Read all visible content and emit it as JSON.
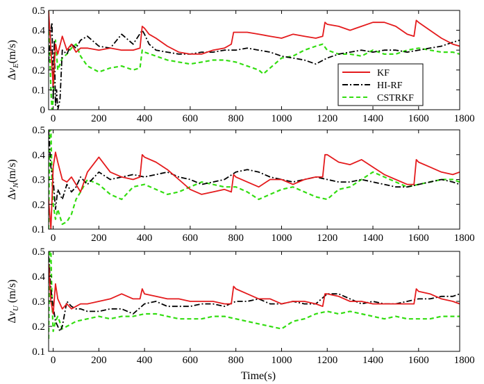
{
  "figure": {
    "xlabel": "Time(s)"
  },
  "legend": {
    "placement": "inside-right of top panel",
    "entries": [
      "KF",
      "HI-RF",
      "CSTRKF"
    ]
  },
  "colors": {
    "KF": "#e41a1c",
    "HI-RF": "#000000",
    "CSTRKF": "#33dd11"
  },
  "chart_data": [
    {
      "type": "line",
      "panel": "top",
      "ylabel_delta": "Δ",
      "ylabel_main": "v",
      "ylabel_sub": "E",
      "ylabel_unit": "(m/s)",
      "xlim": [
        -20,
        1780
      ],
      "ylim": [
        0,
        0.5
      ],
      "xticks": [
        0,
        200,
        400,
        600,
        800,
        1000,
        1200,
        1400,
        1600,
        1800
      ],
      "yticks": [
        0,
        0.1,
        0.2,
        0.3,
        0.4,
        0.5
      ],
      "grid": false,
      "series": [
        {
          "name": "KF",
          "style": "solid",
          "x": [
            -20,
            -10,
            0,
            10,
            20,
            40,
            60,
            80,
            100,
            120,
            150,
            200,
            250,
            300,
            350,
            380,
            390,
            400,
            420,
            450,
            500,
            550,
            600,
            650,
            700,
            750,
            780,
            790,
            800,
            850,
            900,
            950,
            1000,
            1050,
            1100,
            1150,
            1180,
            1190,
            1200,
            1250,
            1300,
            1350,
            1400,
            1450,
            1500,
            1550,
            1580,
            1590,
            1600,
            1650,
            1700,
            1750,
            1780
          ],
          "y": [
            0.5,
            0.3,
            0.12,
            0.33,
            0.28,
            0.37,
            0.3,
            0.33,
            0.29,
            0.31,
            0.31,
            0.3,
            0.31,
            0.3,
            0.3,
            0.31,
            0.42,
            0.41,
            0.38,
            0.36,
            0.32,
            0.29,
            0.28,
            0.28,
            0.3,
            0.31,
            0.33,
            0.39,
            0.39,
            0.39,
            0.38,
            0.37,
            0.36,
            0.38,
            0.37,
            0.36,
            0.37,
            0.44,
            0.43,
            0.42,
            0.4,
            0.42,
            0.44,
            0.44,
            0.42,
            0.38,
            0.37,
            0.45,
            0.44,
            0.4,
            0.36,
            0.33,
            0.32
          ]
        },
        {
          "name": "HI-RF",
          "style": "dashdot",
          "x": [
            -20,
            -10,
            -5,
            0,
            5,
            10,
            15,
            20,
            30,
            40,
            60,
            80,
            100,
            120,
            150,
            200,
            250,
            300,
            350,
            390,
            400,
            420,
            450,
            500,
            550,
            600,
            650,
            700,
            750,
            800,
            850,
            900,
            950,
            1000,
            1050,
            1100,
            1150,
            1200,
            1250,
            1300,
            1350,
            1400,
            1450,
            1500,
            1550,
            1600,
            1650,
            1700,
            1750,
            1780
          ],
          "y": [
            0.24,
            0.4,
            0.44,
            0.05,
            0.35,
            0.02,
            0.1,
            0.0,
            0.05,
            0.3,
            0.28,
            0.33,
            0.31,
            0.35,
            0.37,
            0.32,
            0.31,
            0.38,
            0.33,
            0.4,
            0.38,
            0.33,
            0.3,
            0.29,
            0.28,
            0.28,
            0.29,
            0.29,
            0.3,
            0.3,
            0.31,
            0.3,
            0.29,
            0.27,
            0.26,
            0.25,
            0.23,
            0.26,
            0.28,
            0.29,
            0.3,
            0.29,
            0.3,
            0.3,
            0.29,
            0.3,
            0.31,
            0.32,
            0.34,
            0.35
          ]
        },
        {
          "name": "CSTRKF",
          "style": "dashed",
          "x": [
            -20,
            -15,
            -10,
            -5,
            0,
            5,
            10,
            20,
            40,
            60,
            80,
            100,
            120,
            150,
            200,
            250,
            300,
            350,
            380,
            390,
            400,
            450,
            500,
            550,
            600,
            650,
            700,
            750,
            800,
            850,
            900,
            920,
            950,
            1000,
            1050,
            1100,
            1150,
            1180,
            1200,
            1250,
            1300,
            1350,
            1400,
            1450,
            1500,
            1550,
            1600,
            1650,
            1700,
            1750,
            1780
          ],
          "y": [
            0.5,
            0.3,
            0.1,
            0.0,
            0.05,
            0.25,
            0.35,
            0.2,
            0.26,
            0.28,
            0.31,
            0.33,
            0.27,
            0.22,
            0.19,
            0.21,
            0.22,
            0.2,
            0.21,
            0.3,
            0.29,
            0.27,
            0.25,
            0.24,
            0.23,
            0.24,
            0.25,
            0.25,
            0.24,
            0.22,
            0.2,
            0.18,
            0.21,
            0.26,
            0.27,
            0.3,
            0.32,
            0.33,
            0.3,
            0.28,
            0.28,
            0.27,
            0.3,
            0.28,
            0.28,
            0.3,
            0.31,
            0.3,
            0.29,
            0.29,
            0.28
          ]
        }
      ]
    },
    {
      "type": "line",
      "panel": "middle",
      "ylabel_delta": "Δ",
      "ylabel_main": "v",
      "ylabel_sub": "N",
      "ylabel_unit": "(m/s)",
      "xlim": [
        -20,
        1780
      ],
      "ylim": [
        0.1,
        0.5
      ],
      "xticks": [
        0,
        200,
        400,
        600,
        800,
        1000,
        1200,
        1400,
        1600,
        1800
      ],
      "yticks": [
        0.1,
        0.2,
        0.3,
        0.4,
        0.5
      ],
      "grid": false,
      "series": [
        {
          "name": "KF",
          "style": "solid",
          "x": [
            -20,
            -10,
            0,
            10,
            20,
            40,
            60,
            80,
            100,
            120,
            150,
            200,
            250,
            300,
            350,
            380,
            390,
            400,
            450,
            500,
            550,
            600,
            650,
            700,
            750,
            780,
            790,
            800,
            850,
            900,
            950,
            1000,
            1050,
            1100,
            1150,
            1180,
            1190,
            1200,
            1250,
            1300,
            1350,
            1400,
            1450,
            1500,
            1550,
            1580,
            1590,
            1600,
            1650,
            1700,
            1750,
            1780
          ],
          "y": [
            0.22,
            0.1,
            0.35,
            0.41,
            0.37,
            0.3,
            0.29,
            0.31,
            0.28,
            0.25,
            0.33,
            0.39,
            0.33,
            0.31,
            0.3,
            0.31,
            0.4,
            0.39,
            0.37,
            0.34,
            0.3,
            0.26,
            0.24,
            0.25,
            0.26,
            0.25,
            0.32,
            0.31,
            0.29,
            0.27,
            0.3,
            0.3,
            0.28,
            0.3,
            0.31,
            0.31,
            0.4,
            0.4,
            0.37,
            0.36,
            0.38,
            0.35,
            0.32,
            0.3,
            0.28,
            0.28,
            0.38,
            0.37,
            0.35,
            0.33,
            0.32,
            0.33
          ]
        },
        {
          "name": "HI-RF",
          "style": "dashdot",
          "x": [
            -20,
            -10,
            0,
            10,
            20,
            40,
            60,
            80,
            100,
            120,
            150,
            200,
            250,
            300,
            350,
            400,
            450,
            500,
            550,
            600,
            650,
            700,
            750,
            800,
            850,
            900,
            950,
            1000,
            1050,
            1100,
            1150,
            1200,
            1250,
            1300,
            1350,
            1400,
            1450,
            1500,
            1550,
            1600,
            1650,
            1700,
            1750,
            1780
          ],
          "y": [
            0.5,
            0.35,
            0.3,
            0.18,
            0.26,
            0.22,
            0.28,
            0.25,
            0.27,
            0.31,
            0.28,
            0.33,
            0.3,
            0.31,
            0.32,
            0.31,
            0.32,
            0.33,
            0.31,
            0.3,
            0.28,
            0.29,
            0.3,
            0.33,
            0.34,
            0.33,
            0.31,
            0.3,
            0.29,
            0.3,
            0.31,
            0.3,
            0.29,
            0.29,
            0.3,
            0.29,
            0.28,
            0.27,
            0.27,
            0.28,
            0.29,
            0.3,
            0.29,
            0.28
          ]
        },
        {
          "name": "CSTRKF",
          "style": "dashed",
          "x": [
            -20,
            -15,
            -10,
            -5,
            0,
            10,
            20,
            40,
            60,
            80,
            100,
            120,
            150,
            200,
            250,
            300,
            350,
            400,
            450,
            500,
            550,
            600,
            650,
            700,
            750,
            800,
            850,
            900,
            950,
            1000,
            1050,
            1100,
            1150,
            1200,
            1250,
            1300,
            1350,
            1400,
            1450,
            1500,
            1550,
            1600,
            1650,
            1700,
            1750,
            1780
          ],
          "y": [
            0.1,
            0.5,
            0.5,
            0.3,
            0.2,
            0.14,
            0.18,
            0.12,
            0.13,
            0.16,
            0.22,
            0.25,
            0.3,
            0.28,
            0.24,
            0.22,
            0.27,
            0.28,
            0.26,
            0.24,
            0.25,
            0.27,
            0.29,
            0.28,
            0.27,
            0.27,
            0.25,
            0.22,
            0.24,
            0.26,
            0.27,
            0.25,
            0.23,
            0.22,
            0.26,
            0.27,
            0.3,
            0.33,
            0.31,
            0.29,
            0.27,
            0.28,
            0.29,
            0.3,
            0.3,
            0.29
          ]
        }
      ]
    },
    {
      "type": "line",
      "panel": "bottom",
      "ylabel_delta": "Δ",
      "ylabel_main": "v",
      "ylabel_sub": "U",
      "ylabel_unit": " (m/s)",
      "xlim": [
        -20,
        1780
      ],
      "ylim": [
        0.1,
        0.5
      ],
      "xticks": [
        0,
        200,
        400,
        600,
        800,
        1000,
        1200,
        1400,
        1600,
        1800
      ],
      "yticks": [
        0.1,
        0.2,
        0.3,
        0.4,
        0.5
      ],
      "grid": false,
      "series": [
        {
          "name": "KF",
          "style": "solid",
          "x": [
            -20,
            -10,
            0,
            10,
            20,
            40,
            60,
            80,
            100,
            120,
            150,
            200,
            250,
            300,
            350,
            380,
            390,
            400,
            450,
            500,
            550,
            600,
            650,
            700,
            750,
            780,
            790,
            800,
            850,
            900,
            950,
            1000,
            1050,
            1100,
            1150,
            1180,
            1190,
            1200,
            1250,
            1300,
            1350,
            1400,
            1450,
            1500,
            1550,
            1580,
            1590,
            1600,
            1650,
            1700,
            1750,
            1780
          ],
          "y": [
            0.45,
            0.3,
            0.25,
            0.37,
            0.31,
            0.27,
            0.29,
            0.27,
            0.28,
            0.29,
            0.29,
            0.3,
            0.31,
            0.33,
            0.31,
            0.31,
            0.35,
            0.33,
            0.32,
            0.31,
            0.31,
            0.3,
            0.3,
            0.3,
            0.29,
            0.29,
            0.36,
            0.35,
            0.33,
            0.31,
            0.31,
            0.29,
            0.3,
            0.3,
            0.29,
            0.28,
            0.33,
            0.33,
            0.32,
            0.3,
            0.3,
            0.29,
            0.29,
            0.29,
            0.29,
            0.29,
            0.35,
            0.34,
            0.33,
            0.31,
            0.3,
            0.29
          ]
        },
        {
          "name": "HI-RF",
          "style": "dashdot",
          "x": [
            -20,
            -10,
            0,
            10,
            20,
            30,
            40,
            60,
            80,
            100,
            120,
            150,
            200,
            250,
            300,
            350,
            400,
            450,
            500,
            550,
            600,
            650,
            700,
            750,
            800,
            850,
            900,
            950,
            1000,
            1050,
            1100,
            1150,
            1200,
            1250,
            1300,
            1350,
            1400,
            1450,
            1500,
            1550,
            1600,
            1650,
            1700,
            1750,
            1780
          ],
          "y": [
            0.48,
            0.35,
            0.28,
            0.22,
            0.2,
            0.18,
            0.2,
            0.3,
            0.28,
            0.27,
            0.27,
            0.26,
            0.26,
            0.27,
            0.27,
            0.25,
            0.29,
            0.3,
            0.28,
            0.28,
            0.28,
            0.29,
            0.29,
            0.28,
            0.3,
            0.3,
            0.31,
            0.29,
            0.29,
            0.3,
            0.29,
            0.29,
            0.33,
            0.33,
            0.31,
            0.29,
            0.3,
            0.29,
            0.29,
            0.3,
            0.31,
            0.31,
            0.32,
            0.32,
            0.33
          ]
        },
        {
          "name": "CSTRKF",
          "style": "dashed",
          "x": [
            -20,
            -15,
            -10,
            -5,
            0,
            10,
            20,
            40,
            60,
            80,
            100,
            150,
            200,
            250,
            300,
            350,
            400,
            450,
            500,
            550,
            600,
            650,
            700,
            750,
            800,
            850,
            900,
            950,
            1000,
            1050,
            1100,
            1150,
            1200,
            1250,
            1300,
            1350,
            1400,
            1450,
            1500,
            1550,
            1600,
            1650,
            1700,
            1750,
            1780
          ],
          "y": [
            0.15,
            0.5,
            0.5,
            0.3,
            0.18,
            0.22,
            0.24,
            0.19,
            0.2,
            0.21,
            0.22,
            0.23,
            0.24,
            0.23,
            0.24,
            0.24,
            0.25,
            0.25,
            0.24,
            0.23,
            0.23,
            0.23,
            0.24,
            0.24,
            0.23,
            0.22,
            0.21,
            0.2,
            0.19,
            0.22,
            0.23,
            0.25,
            0.26,
            0.25,
            0.26,
            0.25,
            0.24,
            0.23,
            0.24,
            0.23,
            0.23,
            0.23,
            0.24,
            0.24,
            0.24
          ]
        }
      ]
    }
  ]
}
